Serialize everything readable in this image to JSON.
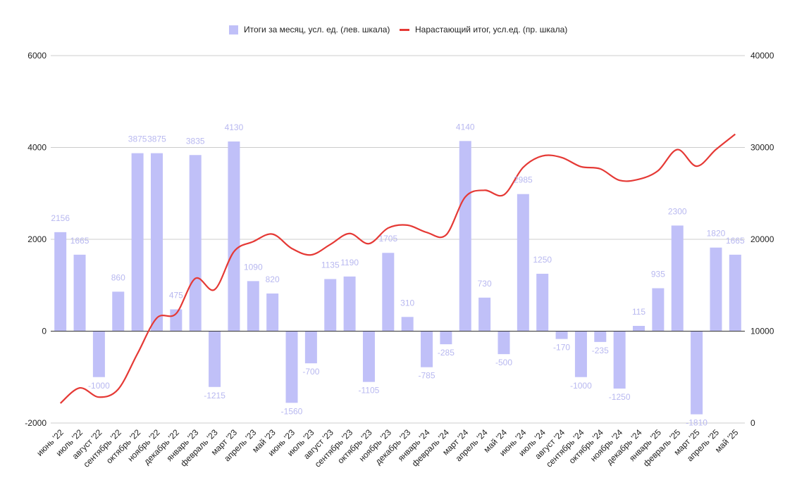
{
  "chart_data": {
    "type": "bar",
    "categories": [
      "июнь '22",
      "июль '22",
      "август '22",
      "сентябрь '22",
      "октябрь '22",
      "ноябрь '22",
      "декабрь '22",
      "январь '23",
      "февраль '23",
      "март '23",
      "апрель '23",
      "май '23",
      "июнь '23",
      "июль '23",
      "август '23",
      "сентябрь '23",
      "октябрь '23",
      "ноябрь '23",
      "декабрь '23",
      "январь '24",
      "февраль '24",
      "март '24",
      "апрель '24",
      "май '24",
      "июнь '24",
      "июль '24",
      "август '24",
      "сентябрь '24",
      "октябрь '24",
      "ноябрь '24",
      "декабрь '24",
      "январь '25",
      "февраль '25",
      "март '25",
      "апрель '25",
      "май '25"
    ],
    "series": [
      {
        "name": "Итоги за месяц, усл. ед. (лев. шкала)",
        "type": "bar",
        "axis": "left",
        "color": "#c0c0f8",
        "values": [
          2156,
          1665,
          -1000,
          860,
          3875,
          3875,
          475,
          3835,
          -1215,
          4130,
          1090,
          820,
          -1560,
          -700,
          1135,
          1190,
          -1105,
          1705,
          310,
          -785,
          -285,
          4140,
          730,
          -500,
          2985,
          1250,
          -170,
          -1000,
          -235,
          -1250,
          115,
          935,
          2300,
          -1810,
          1820,
          1665
        ]
      },
      {
        "name": "Нарастающий итог, усл.ед. (пр. шкала)",
        "type": "line",
        "axis": "right",
        "color": "#e53935",
        "values": [
          2156,
          3821,
          2821,
          3681,
          7556,
          11431,
          11906,
          15741,
          14526,
          18656,
          19746,
          20566,
          19006,
          18306,
          19441,
          20631,
          19526,
          21231,
          21541,
          20756,
          20471,
          24611,
          25341,
          24841,
          27826,
          29076,
          28906,
          27906,
          27671,
          26421,
          26536,
          27471,
          29771,
          27961,
          29781,
          31446
        ]
      }
    ],
    "data_labels": [
      "2156",
      "1665",
      "-1000",
      "860",
      "3875",
      "3875",
      "475",
      "3835",
      "-1215",
      "4130",
      "1090",
      "820",
      "-1560",
      "-700",
      "1135",
      "1190",
      "-1105",
      "1705",
      "310",
      "-785",
      "-285",
      "4140",
      "730",
      "-500",
      "2985",
      "1250",
      "-170",
      "-1000",
      "-235",
      "-1250",
      "115",
      "935",
      "2300",
      "-1810",
      "1820",
      "1665"
    ],
    "y_left": {
      "ticks": [
        "6000",
        "4000",
        "2000",
        "0",
        "-2000"
      ],
      "min": -2000,
      "max": 6000
    },
    "y_right": {
      "ticks": [
        "40000",
        "30000",
        "20000",
        "10000",
        "0"
      ],
      "min": 0,
      "max": 40000
    },
    "grid": true,
    "legend_position": "top"
  }
}
